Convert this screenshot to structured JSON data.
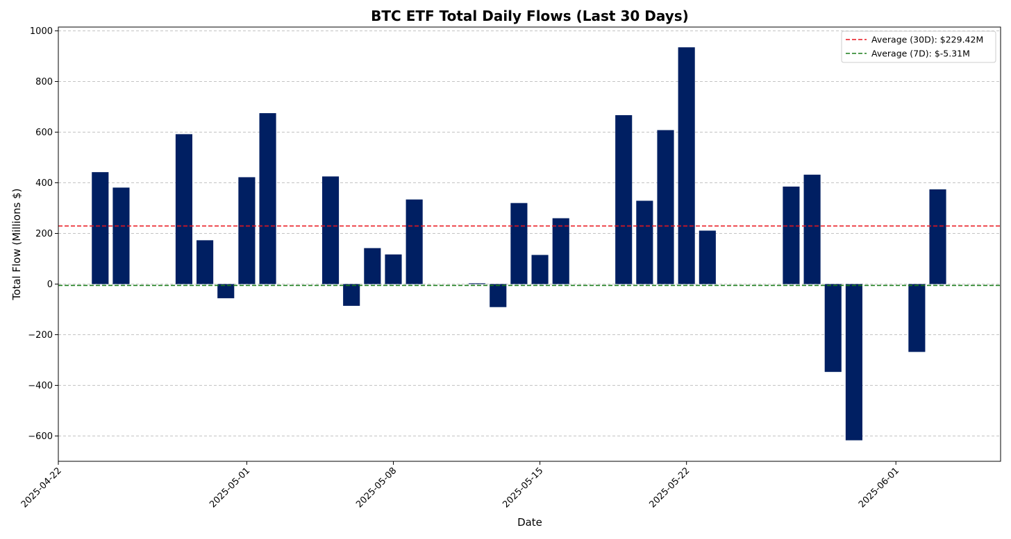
{
  "chart_data": {
    "type": "bar",
    "title": "BTC ETF Total Daily Flows (Last 30 Days)",
    "xlabel": "Date",
    "ylabel": "Total Flow (Millions $)",
    "ylim": [
      -700,
      1015
    ],
    "xlim": [
      "2025-04-22T00:00",
      "2025-06-06T00:00"
    ],
    "yticks": [
      -600,
      -400,
      -200,
      0,
      200,
      400,
      600,
      800,
      1000
    ],
    "yticklabels": [
      "−600",
      "−400",
      "−200",
      "0",
      "200",
      "400",
      "600",
      "800",
      "1000"
    ],
    "xticks": [
      "2025-04-22",
      "2025-05-01",
      "2025-05-08",
      "2025-05-15",
      "2025-05-22",
      "2025-06-01"
    ],
    "grid": "horizontal-dashed",
    "bar_color": "#001f62",
    "series": [
      {
        "name": "Total Flow",
        "x": [
          "2025-04-24",
          "2025-04-25",
          "2025-04-28",
          "2025-04-29",
          "2025-04-30",
          "2025-05-01",
          "2025-05-02",
          "2025-05-05",
          "2025-05-06",
          "2025-05-07",
          "2025-05-08",
          "2025-05-09",
          "2025-05-12",
          "2025-05-13",
          "2025-05-14",
          "2025-05-15",
          "2025-05-16",
          "2025-05-19",
          "2025-05-20",
          "2025-05-21",
          "2025-05-22",
          "2025-05-23",
          "2025-05-27",
          "2025-05-28",
          "2025-05-29",
          "2025-05-30",
          "2025-06-02",
          "2025-06-03"
        ],
        "values": [
          442,
          381,
          592,
          173,
          -56,
          422,
          675,
          425,
          -86,
          142,
          117,
          334,
          3,
          -91,
          320,
          115,
          260,
          667,
          329,
          608,
          935,
          211,
          385,
          432,
          -347,
          -617,
          -268,
          374
        ]
      }
    ],
    "reference_lines": [
      {
        "label": "Average (30D): $229.42M",
        "value": 229.42,
        "color": "#e8141c",
        "style": "dashed"
      },
      {
        "label": "Average (7D): $-5.31M",
        "value": -5.31,
        "color": "#1a7d1a",
        "style": "dashed"
      }
    ],
    "legend": "top-right"
  }
}
